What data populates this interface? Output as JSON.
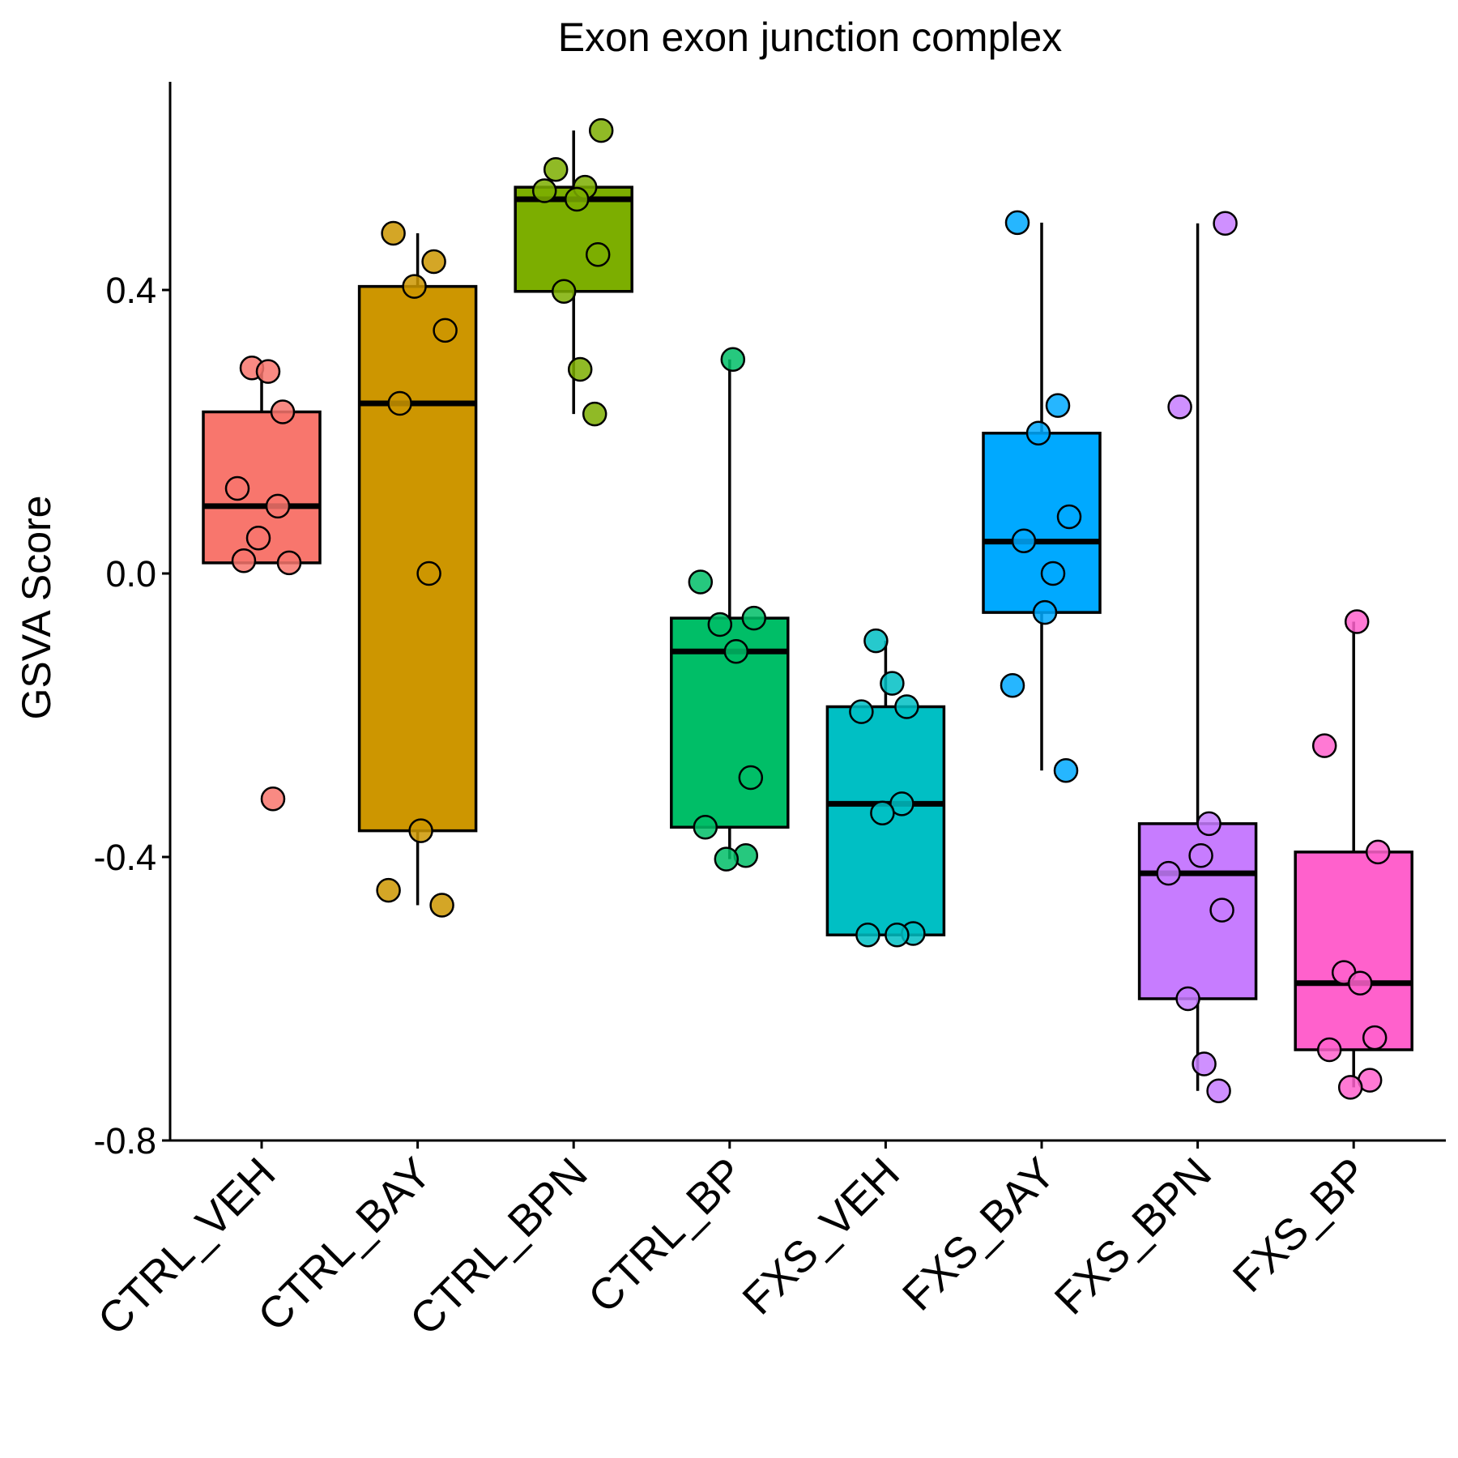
{
  "chart_data": {
    "type": "box",
    "title": "Exon exon junction complex",
    "xlabel": "",
    "ylabel": "GSVA Score",
    "ylim": [
      -0.8,
      0.7
    ],
    "yticks": [
      -0.8,
      -0.4,
      0.0,
      0.4
    ],
    "ytick_labels": [
      "-0.8",
      "-0.4",
      "0.0",
      "0.4"
    ],
    "grid": false,
    "legend": "none",
    "groups": [
      {
        "name": "CTRL_VEH",
        "color": "#F8766D",
        "q1": 0.015,
        "median": 0.095,
        "q3": 0.228,
        "whisker_low": 0.015,
        "whisker_high": 0.29,
        "points": [
          0.29,
          0.285,
          0.228,
          0.12,
          0.095,
          0.05,
          0.015,
          0.018,
          -0.318
        ]
      },
      {
        "name": "CTRL_BAY",
        "color": "#CD9600",
        "q1": -0.363,
        "median": 0.24,
        "q3": 0.405,
        "whisker_low": -0.468,
        "whisker_high": 0.48,
        "points": [
          0.48,
          0.44,
          0.405,
          0.343,
          0.24,
          0.0,
          -0.363,
          -0.447,
          -0.468
        ]
      },
      {
        "name": "CTRL_BPN",
        "color": "#7CAE00",
        "q1": 0.398,
        "median": 0.528,
        "q3": 0.545,
        "whisker_low": 0.225,
        "whisker_high": 0.625,
        "points": [
          0.625,
          0.57,
          0.545,
          0.528,
          0.54,
          0.45,
          0.398,
          0.288,
          0.225
        ]
      },
      {
        "name": "CTRL_BP",
        "color": "#00BE67",
        "q1": -0.358,
        "median": -0.11,
        "q3": -0.063,
        "whisker_low": -0.403,
        "whisker_high": 0.302,
        "points": [
          0.302,
          -0.012,
          -0.063,
          -0.072,
          -0.11,
          -0.288,
          -0.358,
          -0.398,
          -0.403
        ]
      },
      {
        "name": "FXS_VEH",
        "color": "#00BFC4",
        "q1": -0.51,
        "median": -0.325,
        "q3": -0.188,
        "whisker_low": -0.51,
        "whisker_high": -0.095,
        "points": [
          -0.095,
          -0.155,
          -0.188,
          -0.195,
          -0.325,
          -0.338,
          -0.508,
          -0.51,
          -0.51
        ]
      },
      {
        "name": "FXS_BAY",
        "color": "#00A9FF",
        "q1": -0.055,
        "median": 0.045,
        "q3": 0.198,
        "whisker_low": -0.278,
        "whisker_high": 0.495,
        "points": [
          0.495,
          0.237,
          0.198,
          0.08,
          0.046,
          0.0,
          -0.055,
          -0.158,
          -0.278
        ]
      },
      {
        "name": "FXS_BPN",
        "color": "#C77CFF",
        "q1": -0.6,
        "median": -0.423,
        "q3": -0.353,
        "whisker_low": -0.73,
        "whisker_high": 0.494,
        "points": [
          0.494,
          0.235,
          -0.353,
          -0.398,
          -0.423,
          -0.475,
          -0.6,
          -0.692,
          -0.73
        ]
      },
      {
        "name": "FXS_BP",
        "color": "#FF61CC",
        "q1": -0.672,
        "median": -0.578,
        "q3": -0.393,
        "whisker_low": -0.725,
        "whisker_high": -0.068,
        "points": [
          -0.068,
          -0.243,
          -0.393,
          -0.563,
          -0.578,
          -0.655,
          -0.672,
          -0.715,
          -0.725
        ]
      }
    ]
  }
}
